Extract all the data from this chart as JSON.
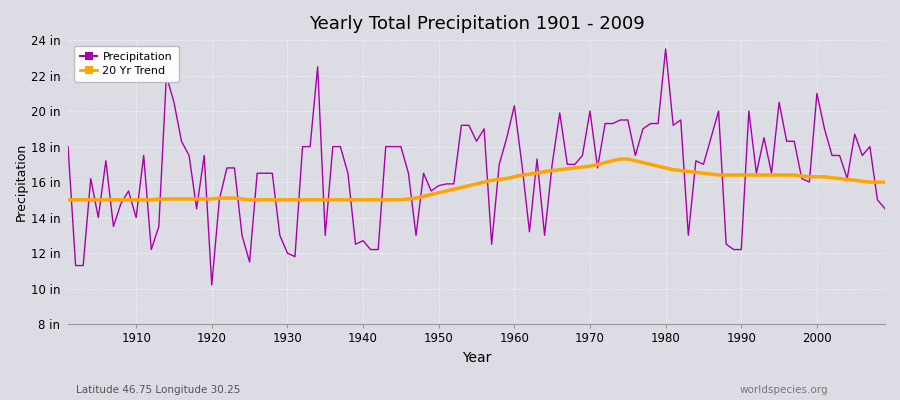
{
  "title": "Yearly Total Precipitation 1901 - 2009",
  "xlabel": "Year",
  "ylabel": "Precipitation",
  "subtitle_left": "Latitude 46.75 Longitude 30.25",
  "subtitle_right": "worldspecies.org",
  "background_color": "#dcdce4",
  "plot_bg_color": "#dcdce4",
  "precip_color": "#aa00aa",
  "trend_color": "#FFA500",
  "ylim": [
    8,
    24
  ],
  "yticks": [
    8,
    10,
    12,
    14,
    16,
    18,
    20,
    22,
    24
  ],
  "ytick_labels": [
    "8 in",
    "10 in",
    "12 in",
    "14 in",
    "16 in",
    "18 in",
    "20 in",
    "22 in",
    "24 in"
  ],
  "years": [
    1901,
    1902,
    1903,
    1904,
    1905,
    1906,
    1907,
    1908,
    1909,
    1910,
    1911,
    1912,
    1913,
    1914,
    1915,
    1916,
    1917,
    1918,
    1919,
    1920,
    1921,
    1922,
    1923,
    1924,
    1925,
    1926,
    1927,
    1928,
    1929,
    1930,
    1931,
    1932,
    1933,
    1934,
    1935,
    1936,
    1937,
    1938,
    1939,
    1940,
    1941,
    1942,
    1943,
    1944,
    1945,
    1946,
    1947,
    1948,
    1949,
    1950,
    1951,
    1952,
    1953,
    1954,
    1955,
    1956,
    1957,
    1958,
    1959,
    1960,
    1961,
    1962,
    1963,
    1964,
    1965,
    1966,
    1967,
    1968,
    1969,
    1970,
    1971,
    1972,
    1973,
    1974,
    1975,
    1976,
    1977,
    1978,
    1979,
    1980,
    1981,
    1982,
    1983,
    1984,
    1985,
    1986,
    1987,
    1988,
    1989,
    1990,
    1991,
    1992,
    1993,
    1994,
    1995,
    1996,
    1997,
    1998,
    1999,
    2000,
    2001,
    2002,
    2003,
    2004,
    2005,
    2006,
    2007,
    2008,
    2009
  ],
  "precip": [
    18.0,
    11.3,
    11.3,
    16.2,
    14.0,
    17.2,
    13.5,
    14.8,
    15.5,
    14.0,
    17.5,
    12.2,
    13.5,
    22.0,
    20.5,
    18.3,
    17.5,
    14.5,
    17.5,
    10.2,
    15.0,
    16.8,
    16.8,
    13.0,
    11.5,
    16.5,
    16.5,
    16.5,
    13.0,
    12.0,
    11.8,
    18.0,
    18.0,
    22.5,
    13.0,
    18.0,
    18.0,
    16.5,
    12.5,
    12.7,
    12.2,
    12.2,
    18.0,
    18.0,
    18.0,
    16.5,
    13.0,
    16.5,
    15.5,
    15.8,
    15.9,
    15.9,
    19.2,
    19.2,
    18.3,
    19.0,
    12.5,
    17.0,
    18.5,
    20.3,
    17.0,
    13.2,
    17.3,
    13.0,
    17.0,
    19.9,
    17.0,
    17.0,
    17.5,
    20.0,
    16.8,
    19.3,
    19.3,
    19.5,
    19.5,
    17.5,
    19.0,
    19.3,
    19.3,
    23.5,
    19.2,
    19.5,
    13.0,
    17.2,
    17.0,
    18.5,
    20.0,
    12.5,
    12.2,
    12.2,
    20.0,
    16.5,
    18.5,
    16.5,
    20.5,
    18.3,
    18.3,
    16.2,
    16.0,
    21.0,
    19.0,
    17.5,
    17.5,
    16.2,
    18.7,
    17.5,
    18.0,
    15.0,
    14.5
  ],
  "trend": [
    15.0,
    15.0,
    15.0,
    15.0,
    15.0,
    15.0,
    15.0,
    15.0,
    15.0,
    15.0,
    15.0,
    15.0,
    15.05,
    15.05,
    15.05,
    15.05,
    15.05,
    15.05,
    15.05,
    15.05,
    15.1,
    15.1,
    15.1,
    15.05,
    15.0,
    15.0,
    15.0,
    15.0,
    15.0,
    15.0,
    15.0,
    15.0,
    15.0,
    15.0,
    15.0,
    15.0,
    15.0,
    15.0,
    15.0,
    15.0,
    15.0,
    15.0,
    15.0,
    15.0,
    15.0,
    15.05,
    15.1,
    15.2,
    15.3,
    15.4,
    15.5,
    15.6,
    15.7,
    15.8,
    15.9,
    16.0,
    16.1,
    16.15,
    16.2,
    16.3,
    16.4,
    16.45,
    16.5,
    16.6,
    16.65,
    16.7,
    16.75,
    16.8,
    16.85,
    16.9,
    17.0,
    17.1,
    17.2,
    17.3,
    17.3,
    17.2,
    17.1,
    17.0,
    16.9,
    16.8,
    16.7,
    16.65,
    16.6,
    16.55,
    16.5,
    16.45,
    16.4,
    16.4,
    16.4,
    16.4,
    16.4,
    16.4,
    16.4,
    16.4,
    16.4,
    16.4,
    16.4,
    16.35,
    16.3,
    16.3,
    16.3,
    16.25,
    16.2,
    16.15,
    16.1,
    16.05,
    16.0,
    16.0,
    16.0
  ]
}
